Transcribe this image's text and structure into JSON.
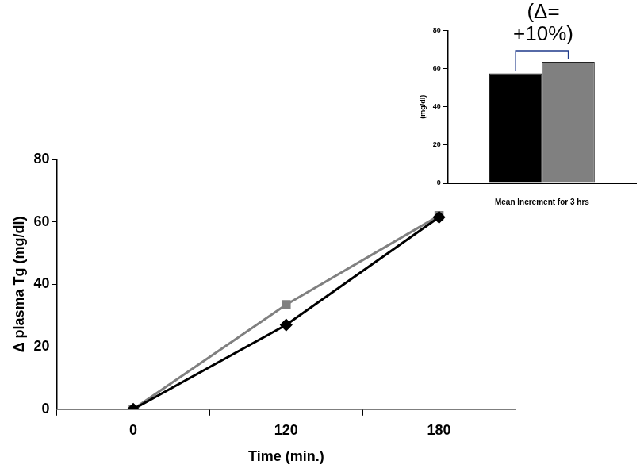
{
  "chart_data": [
    {
      "type": "line",
      "x_label": "Time (min.)",
      "y_label": "Δ plasma Tg (mg/dl)",
      "categories": [
        "0",
        "120",
        "180"
      ],
      "series": [
        {
          "color": "#000000",
          "marker": "diamond",
          "values": [
            0,
            27,
            61.5
          ]
        },
        {
          "color": "#808080",
          "marker": "square",
          "values": [
            0,
            33.5,
            62
          ]
        }
      ],
      "ylim": [
        0,
        80
      ],
      "yticks": [
        0,
        20,
        40,
        60,
        80
      ],
      "grid": false
    },
    {
      "type": "bar",
      "y_label": "(mg/dl)",
      "categories": [
        "Mean Increment for 3 hrs"
      ],
      "series": [
        {
          "color": "#000000",
          "values": [
            57.5
          ]
        },
        {
          "color": "#808080",
          "values": [
            63.5
          ]
        }
      ],
      "ylim": [
        0,
        80
      ],
      "yticks": [
        0,
        20,
        40,
        60,
        80
      ],
      "annotation": "(Δ= +10%)",
      "grid": false
    }
  ]
}
